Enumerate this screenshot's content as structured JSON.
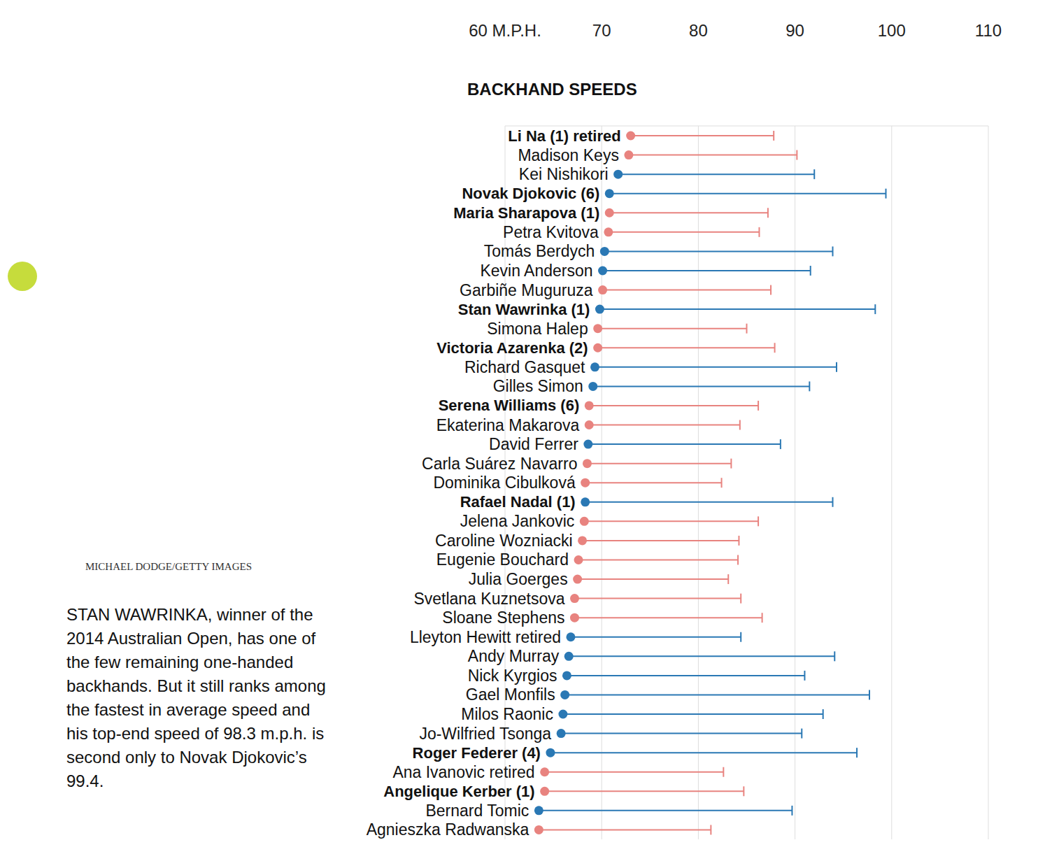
{
  "chart_data": {
    "type": "dumbbell",
    "title": "BACKHAND SPEEDS",
    "orientation": "horizontal",
    "grid": true,
    "annotations": [
      "STAN WAWRINKA, winner of the 2014 Australian Open, has one of the few remaining one-handed backhands. But it still ranks among the fastest in average speed and his top-end speed of 98.3 m.p.h. is second only to Novak Djokovic’s 99.4.",
      "MICHAEL DODGE/GETTY IMAGES"
    ],
    "xlim": [
      60,
      110
    ],
    "xticks": [
      {
        "value": 60,
        "label": "60 M.P.H."
      },
      70,
      80,
      90,
      100,
      110
    ],
    "categories": [
      "Li Na (1) retired",
      "Madison Keys",
      "Kei Nishikori",
      "Novak Djokovic (6)",
      "Maria Sharapova (1)",
      "Petra Kvitova",
      "Tomás Berdych",
      "Kevin Anderson",
      "Garbiñe Muguruza",
      "Stan Wawrinka (1)",
      "Simona Halep",
      "Victoria Azarenka (2)",
      "Richard Gasquet",
      "Gilles Simon",
      "Serena Williams (6)",
      "Ekaterina Makarova",
      "David Ferrer",
      "Carla Suárez Navarro",
      "Dominika Cibulková",
      "Rafael Nadal (1)",
      "Jelena Jankovic",
      "Caroline Wozniacki",
      "Eugenie Bouchard",
      "Julia Goerges",
      "Svetlana Kuznetsova",
      "Sloane Stephens",
      "Lleyton Hewitt retired",
      "Andy Murray",
      "Nick Kyrgios",
      "Gael Monfils",
      "Milos Raonic",
      "Jo-Wilfried Tsonga",
      "Roger Federer (4)",
      "Ana Ivanovic retired",
      "Angelique Kerber (1)",
      "Bernard Tomic",
      "Agnieszka Radwanska"
    ],
    "values": [
      73.0,
      72.8,
      71.7,
      70.8,
      70.8,
      70.7,
      70.3,
      70.1,
      70.1,
      69.8,
      69.6,
      69.6,
      69.3,
      69.1,
      68.7,
      68.7,
      68.6,
      68.5,
      68.3,
      68.3,
      68.2,
      68.0,
      67.6,
      67.5,
      67.2,
      67.2,
      66.8,
      66.6,
      66.4,
      66.2,
      66.0,
      65.8,
      64.7,
      64.1,
      64.1,
      63.5,
      63.5
    ],
    "top_values": [
      87.8,
      90.2,
      92.0,
      99.4,
      87.2,
      86.3,
      93.9,
      91.6,
      87.5,
      98.3,
      85.0,
      87.9,
      94.3,
      91.5,
      86.2,
      84.3,
      88.5,
      83.4,
      82.4,
      93.9,
      86.2,
      84.2,
      84.1,
      83.1,
      84.4,
      86.6,
      84.4,
      94.1,
      91.0,
      97.7,
      92.9,
      90.7,
      96.4,
      82.6,
      84.7,
      89.7,
      81.3
    ],
    "colors": [
      "#e8837f",
      "#e8837f",
      "#2a78b4",
      "#2a78b4",
      "#e8837f",
      "#e8837f",
      "#2a78b4",
      "#2a78b4",
      "#e8837f",
      "#2a78b4",
      "#e8837f",
      "#e8837f",
      "#2a78b4",
      "#2a78b4",
      "#e8837f",
      "#e8837f",
      "#2a78b4",
      "#e8837f",
      "#e8837f",
      "#2a78b4",
      "#e8837f",
      "#e8837f",
      "#e8837f",
      "#e8837f",
      "#e8837f",
      "#e8837f",
      "#2a78b4",
      "#2a78b4",
      "#2a78b4",
      "#2a78b4",
      "#2a78b4",
      "#2a78b4",
      "#2a78b4",
      "#e8837f",
      "#e8837f",
      "#2a78b4",
      "#e8837f"
    ]
  }
}
